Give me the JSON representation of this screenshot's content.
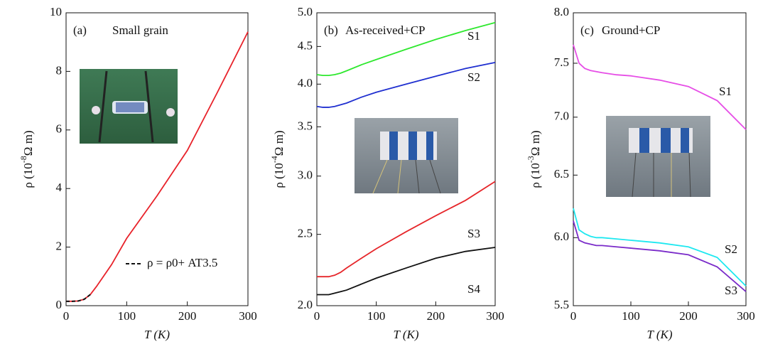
{
  "chart_data": [
    {
      "type": "line",
      "panel_label": "(a)",
      "title": "Small grain",
      "xlabel": "T (K)",
      "ylabel": "ρ (10",
      "ylabel_exp": "-8",
      "ylabel_unit": "Ω m)",
      "x": [
        0,
        10,
        20,
        30,
        40,
        50,
        75,
        100,
        150,
        200,
        250,
        300
      ],
      "xlim": [
        0,
        300
      ],
      "xticks": [
        0,
        100,
        200,
        300
      ],
      "ylim": [
        0,
        10
      ],
      "yticks": [
        0,
        2,
        4,
        6,
        8,
        10
      ],
      "ylog": false,
      "series": [
        {
          "name": "",
          "color": "#e8222a",
          "values": [
            0.15,
            0.15,
            0.16,
            0.22,
            0.38,
            0.65,
            1.4,
            2.3,
            3.75,
            5.3,
            7.3,
            9.35
          ]
        },
        {
          "name": "ρ = ρ0+ AT3.5",
          "color": "#111111",
          "dashed": true,
          "values": [
            0.15,
            0.15,
            0.16,
            0.22,
            0.38,
            null,
            null,
            null,
            null,
            null,
            null,
            null
          ]
        }
      ]
    },
    {
      "type": "line",
      "panel_label": "(b)",
      "title": "As-received+CP",
      "xlabel": "T (K)",
      "ylabel": "ρ (10",
      "ylabel_exp": "-4",
      "ylabel_unit": "Ω m)",
      "x": [
        0,
        10,
        20,
        30,
        40,
        50,
        75,
        100,
        150,
        200,
        250,
        300
      ],
      "xlim": [
        0,
        300
      ],
      "xticks": [
        0,
        100,
        200,
        300
      ],
      "ylim": [
        2,
        5
      ],
      "yticks": [
        {
          "value": 2,
          "label": "2.0"
        },
        2.5,
        {
          "value": 3,
          "label": "3.0"
        },
        3.5,
        {
          "value": 4,
          "label": "4.0"
        },
        4.5,
        {
          "value": 5,
          "label": "5.0"
        }
      ],
      "ylog": true,
      "series": [
        {
          "name": "S1",
          "color": "#2ee82e",
          "values": [
            4.12,
            4.11,
            4.11,
            4.12,
            4.14,
            4.17,
            4.25,
            4.32,
            4.46,
            4.6,
            4.73,
            4.85
          ]
        },
        {
          "name": "S2",
          "color": "#1f2fd0",
          "values": [
            3.73,
            3.72,
            3.72,
            3.73,
            3.75,
            3.77,
            3.84,
            3.9,
            4.0,
            4.1,
            4.2,
            4.28
          ]
        },
        {
          "name": "S3",
          "color": "#e6262a",
          "values": [
            2.19,
            2.19,
            2.19,
            2.2,
            2.22,
            2.25,
            2.32,
            2.39,
            2.52,
            2.65,
            2.78,
            2.95
          ]
        },
        {
          "name": "S4",
          "color": "#111111",
          "values": [
            2.07,
            2.07,
            2.07,
            2.08,
            2.09,
            2.1,
            2.14,
            2.18,
            2.25,
            2.32,
            2.37,
            2.4
          ]
        }
      ]
    },
    {
      "type": "line",
      "panel_label": "(c)",
      "title": "Ground+CP",
      "xlabel": "T (K)",
      "ylabel": "ρ (10",
      "ylabel_exp": "-3",
      "ylabel_unit": "Ω m)",
      "x": [
        0,
        10,
        20,
        30,
        40,
        50,
        75,
        100,
        150,
        200,
        250,
        300
      ],
      "xlim": [
        0,
        300
      ],
      "xticks": [
        0,
        100,
        200,
        300
      ],
      "ylim": [
        5.5,
        8
      ],
      "yticks": [
        5.5,
        {
          "value": 6,
          "label": "6.0"
        },
        6.5,
        {
          "value": 7,
          "label": "7.0"
        },
        7.5,
        {
          "value": 8,
          "label": "8.0"
        }
      ],
      "ylog": true,
      "series": [
        {
          "name": "S1",
          "color": "#e64ee6",
          "values": [
            7.68,
            7.5,
            7.45,
            7.43,
            7.42,
            7.41,
            7.39,
            7.38,
            7.34,
            7.28,
            7.15,
            6.89
          ]
        },
        {
          "name": "S2",
          "color": "#1ee8f0",
          "values": [
            6.23,
            6.06,
            6.03,
            6.01,
            6.0,
            6.0,
            5.99,
            5.98,
            5.96,
            5.93,
            5.85,
            5.64
          ]
        },
        {
          "name": "S3",
          "color": "#7a2bc9",
          "values": [
            6.13,
            5.98,
            5.96,
            5.95,
            5.94,
            5.94,
            5.93,
            5.92,
            5.9,
            5.87,
            5.78,
            5.6
          ]
        }
      ]
    }
  ]
}
